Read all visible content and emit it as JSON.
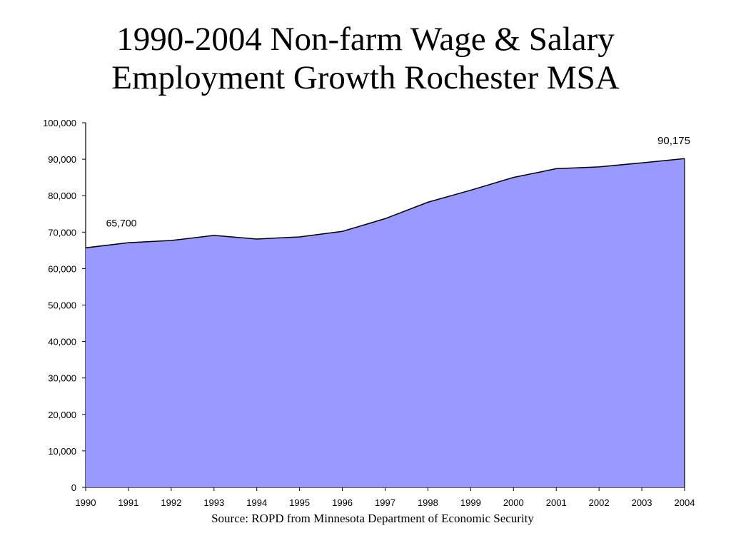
{
  "title_line1": "1990-2004 Non-farm Wage & Salary",
  "title_line2": "Employment Growth Rochester MSA",
  "source": "Source: ROPD from Minnesota Department of Economic Security",
  "chart_data": {
    "type": "area",
    "title": "1990-2004 Non-farm Wage & Salary Employment Growth Rochester MSA",
    "x": [
      "1990",
      "1991",
      "1992",
      "1993",
      "1994",
      "1995",
      "1996",
      "1997",
      "1998",
      "1999",
      "2000",
      "2001",
      "2002",
      "2003",
      "2004"
    ],
    "series": [
      {
        "values": [
          65700,
          67100,
          67700,
          69100,
          68100,
          68700,
          70200,
          73700,
          78200,
          81500,
          85000,
          87400,
          87900,
          89000,
          90175
        ]
      }
    ],
    "ylim": [
      0,
      100000
    ],
    "yticks": [
      "0",
      "10,000",
      "20,000",
      "30,000",
      "40,000",
      "50,000",
      "60,000",
      "70,000",
      "80,000",
      "90,000",
      "100,000"
    ],
    "data_labels": [
      {
        "index": 0,
        "text": "65,700"
      },
      {
        "index": 14,
        "text": "90,175"
      }
    ],
    "fill_color": "#9999ff",
    "line_color": "#000000",
    "grid": false,
    "legend": "none"
  }
}
